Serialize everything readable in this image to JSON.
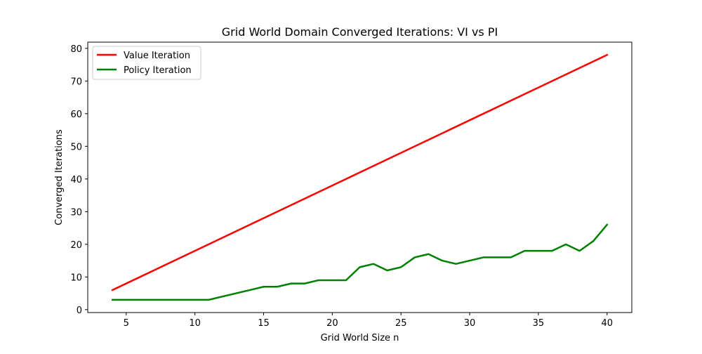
{
  "chart_data": {
    "type": "line",
    "title": "Grid World Domain Converged Iterations: VI vs PI",
    "xlabel": "Grid World Size n",
    "ylabel": "Converged Iterations",
    "xlim": [
      2.2,
      41.8
    ],
    "ylim": [
      -0.9,
      81.9
    ],
    "xticks": [
      5,
      10,
      15,
      20,
      25,
      30,
      35,
      40
    ],
    "yticks": [
      0,
      10,
      20,
      30,
      40,
      50,
      60,
      70,
      80
    ],
    "grid": false,
    "legend_position": "top-left",
    "series": [
      {
        "name": "Value Iteration",
        "color": "#ff0000",
        "x": [
          4,
          40
        ],
        "y": [
          6,
          78
        ]
      },
      {
        "name": "Policy Iteration",
        "color": "#008000",
        "x": [
          4,
          5,
          6,
          7,
          8,
          9,
          10,
          11,
          12,
          13,
          14,
          15,
          16,
          17,
          18,
          19,
          20,
          21,
          22,
          23,
          24,
          25,
          26,
          27,
          28,
          29,
          30,
          31,
          32,
          33,
          34,
          35,
          36,
          37,
          38,
          39,
          40
        ],
        "y": [
          3,
          3,
          3,
          3,
          3,
          3,
          3,
          3,
          4,
          5,
          6,
          7,
          7,
          8,
          8,
          9,
          9,
          9,
          13,
          14,
          12,
          13,
          16,
          17,
          15,
          14,
          15,
          16,
          16,
          16,
          18,
          18,
          18,
          20,
          18,
          21,
          26
        ]
      }
    ]
  }
}
